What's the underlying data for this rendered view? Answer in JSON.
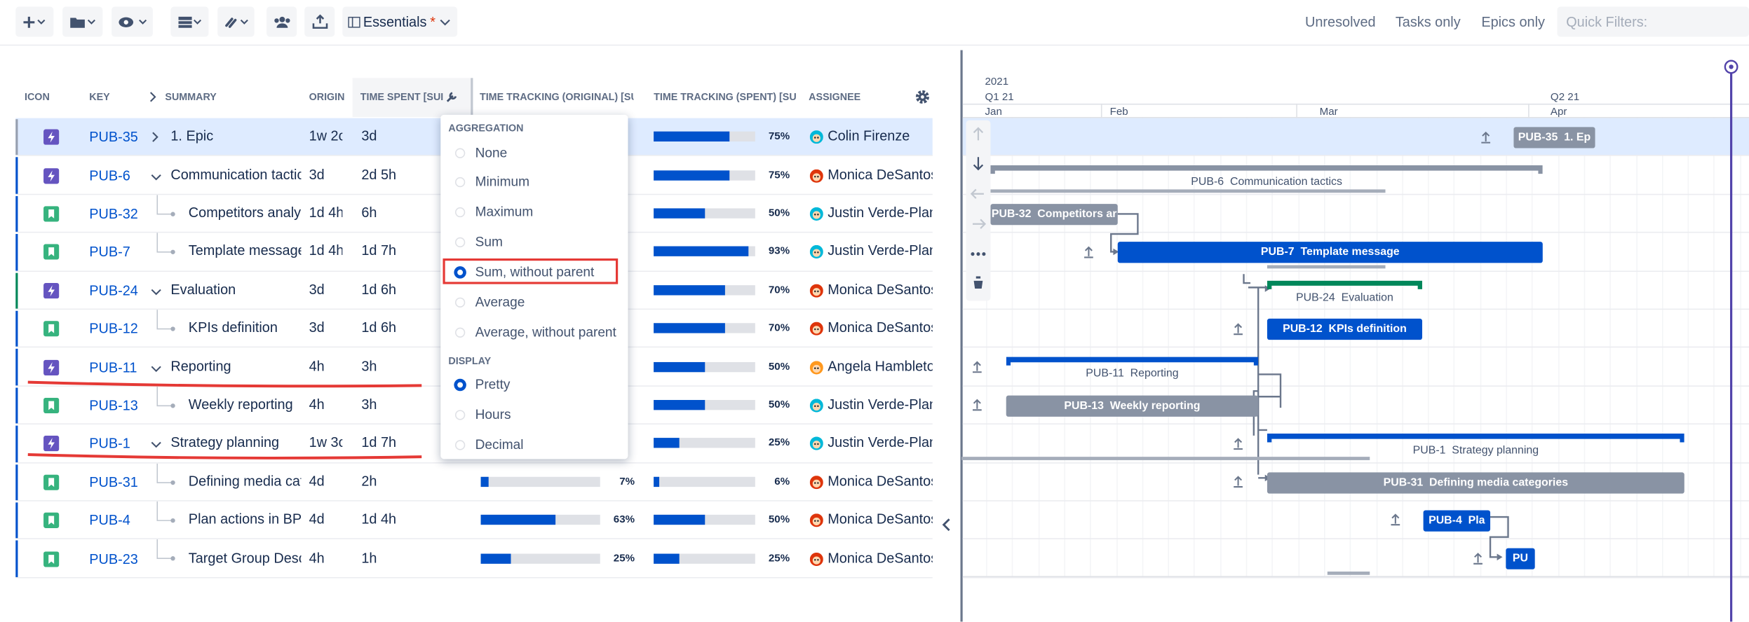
{
  "toolbar": {
    "view": "Essentials",
    "view_marker": "*"
  },
  "filters": [
    "Unresolved",
    "Tasks only",
    "Epics only"
  ],
  "quick_filter_placeholder": "Quick Filters:",
  "table": {
    "columns": [
      "ICON",
      "KEY",
      "SUMMARY",
      "ORIGIN",
      "TIME SPENT [SUI",
      "TIME TRACKING (ORIGINAL) [SUI",
      "TIME TRACKING (SPENT) [SU",
      "ASSIGNEE"
    ],
    "rows": [
      {
        "type": "epic",
        "level": 0,
        "key": "PUB-35",
        "summary": "1. Epic",
        "origin": "1w 2c",
        "spent": "3d",
        "tt_original": null,
        "tt_original_label": null,
        "tt_spent": 75,
        "tt_spent_label": "75%",
        "assignee": "Colin Firenze"
      },
      {
        "type": "epic",
        "level": 1,
        "key": "PUB-6",
        "summary": "Communication tactic",
        "origin": "3d",
        "spent": "2d 5h",
        "tt_original": null,
        "tt_original_label": null,
        "tt_spent": 75,
        "tt_spent_label": "75%",
        "assignee": "Monica DeSantos"
      },
      {
        "type": "story",
        "level": 2,
        "key": "PUB-32",
        "summary": "Competitors analys",
        "origin": "1d 4h",
        "spent": "6h",
        "tt_original": null,
        "tt_original_label": null,
        "tt_spent": 50,
        "tt_spent_label": "50%",
        "assignee": "Justin Verde-Plant"
      },
      {
        "type": "story",
        "level": 2,
        "key": "PUB-7",
        "summary": "Template message",
        "origin": "1d 4h",
        "spent": "1d 7h",
        "tt_original": null,
        "tt_original_label": null,
        "tt_spent": 93,
        "tt_spent_label": "93%",
        "assignee": "Justin Verde-Plant"
      },
      {
        "type": "epic",
        "level": 1,
        "key": "PUB-24",
        "summary": "Evaluation",
        "origin": "3d",
        "spent": "1d 6h",
        "tt_original": null,
        "tt_original_label": null,
        "tt_spent": 70,
        "tt_spent_label": "70%",
        "assignee": "Monica DeSantos"
      },
      {
        "type": "story",
        "level": 2,
        "key": "PUB-12",
        "summary": "KPIs definition",
        "origin": "3d",
        "spent": "1d 6h",
        "tt_original": null,
        "tt_original_label": null,
        "tt_spent": 70,
        "tt_spent_label": "70%",
        "assignee": "Monica DeSantos"
      },
      {
        "type": "epic",
        "level": 1,
        "key": "PUB-11",
        "summary": "Reporting",
        "origin": "4h",
        "spent": "3h",
        "tt_original": null,
        "tt_original_label": null,
        "tt_spent": 50,
        "tt_spent_label": "50%",
        "assignee": "Angela Hambleton"
      },
      {
        "type": "story",
        "level": 2,
        "key": "PUB-13",
        "summary": "Weekly reporting",
        "origin": "4h",
        "spent": "3h",
        "tt_original": null,
        "tt_original_label": null,
        "tt_spent": 50,
        "tt_spent_label": "50%",
        "assignee": "Justin Verde-Plant"
      },
      {
        "type": "epic",
        "level": 1,
        "key": "PUB-1",
        "summary": "Strategy planning",
        "origin": "1w 3c",
        "spent": "1d 7h",
        "tt_original": null,
        "tt_original_label": null,
        "tt_spent": 25,
        "tt_spent_label": "25%",
        "assignee": "Justin Verde-Plant"
      },
      {
        "type": "story",
        "level": 2,
        "key": "PUB-31",
        "summary": "Defining media cat",
        "origin": "4d",
        "spent": "2h",
        "tt_original": 7,
        "tt_original_label": "7%",
        "tt_spent": 6,
        "tt_spent_label": "6%",
        "assignee": "Monica DeSantos"
      },
      {
        "type": "story",
        "level": 2,
        "key": "PUB-4",
        "summary": "Plan actions in BP",
        "origin": "4d",
        "spent": "1d 4h",
        "tt_original": 63,
        "tt_original_label": "63%",
        "tt_spent": 50,
        "tt_spent_label": "50%",
        "assignee": "Monica DeSantos"
      },
      {
        "type": "story",
        "level": 2,
        "key": "PUB-23",
        "summary": "Target Group Descr",
        "origin": "4h",
        "spent": "1h",
        "tt_original": 25,
        "tt_original_label": "25%",
        "tt_spent": 25,
        "tt_spent_label": "25%",
        "assignee": "Monica DeSantos"
      }
    ]
  },
  "dropdown": {
    "aggregation_title": "AGGREGATION",
    "aggregation": [
      "None",
      "Minimum",
      "Maximum",
      "Sum",
      "Sum, without parent",
      "Average",
      "Average, without parent"
    ],
    "aggregation_selected": 4,
    "display_title": "DISPLAY",
    "display": [
      "Pretty",
      "Hours",
      "Decimal"
    ],
    "display_selected": 0
  },
  "gantt": {
    "year": "2021",
    "quarters": [
      "Q1 21",
      "Q2 21"
    ],
    "months": [
      "Jan",
      "Feb",
      "Mar",
      "Apr"
    ],
    "bars": [
      "PUB-35  1. Ep",
      "PUB-6  Communication tactics",
      "PUB-32  Competitors ar",
      "PUB-7  Template message",
      "PUB-24  Evaluation",
      "PUB-12  KPIs definition",
      "PUB-11  Reporting",
      "PUB-13  Weekly reporting",
      "PUB-1  Strategy planning",
      "PUB-31  Defining media categories",
      "PUB-4  Pla",
      "PU"
    ]
  }
}
